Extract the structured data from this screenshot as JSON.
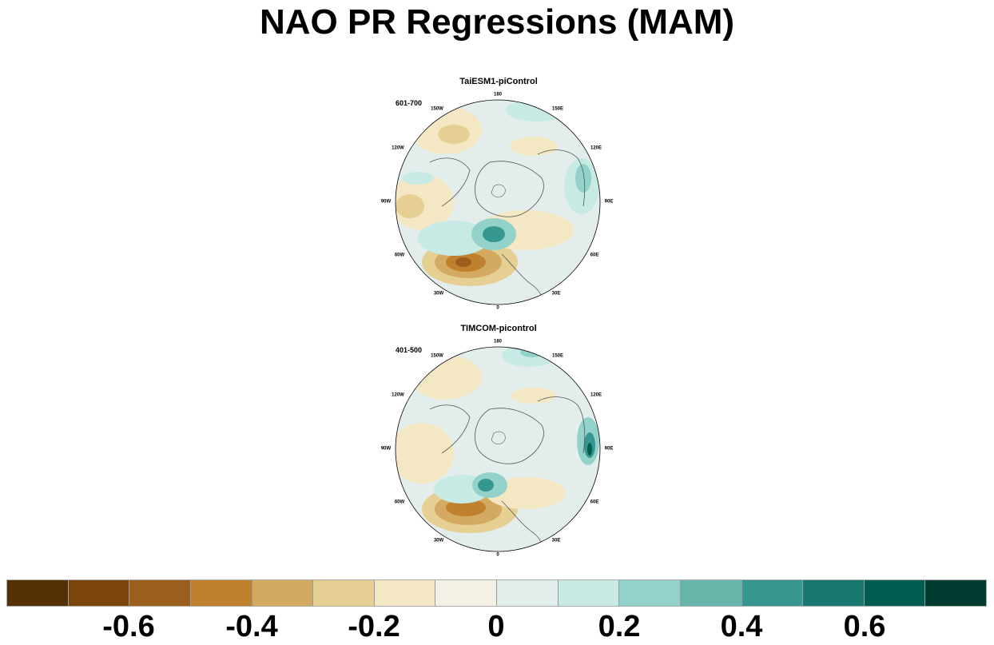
{
  "title": "NAO PR Regressions (MAM)",
  "panels": [
    {
      "title": "TaiESM1-piControl",
      "period": "601-700",
      "longitude_labels": {
        "l180": "180",
        "l150e": "150E",
        "l120e": "120E",
        "l90e": "90E",
        "l60e": "60E",
        "l30e": "30E",
        "l0": "0",
        "l30w": "30W",
        "l60w": "60W",
        "l90w": "90W",
        "l120w": "120W",
        "l150w": "150W"
      }
    },
    {
      "title": "TIMCOM-picontrol",
      "period": "401-500",
      "longitude_labels": {
        "l180": "180",
        "l150e": "150E",
        "l120e": "120E",
        "l90e": "90E",
        "l60e": "60E",
        "l30e": "30E",
        "l0": "0",
        "l30w": "30W",
        "l60w": "60W",
        "l90w": "90W",
        "l120w": "120W",
        "l150w": "150W"
      }
    }
  ],
  "colorbar": {
    "colors": [
      "#543005",
      "#7a440b",
      "#9c5e1d",
      "#bf812d",
      "#d4aa62",
      "#e5cf93",
      "#f4e8c4",
      "#f4f0e6",
      "#e3eeec",
      "#c7eae5",
      "#93d2ca",
      "#66b6ab",
      "#35978f",
      "#18776f",
      "#015c52",
      "#003c30"
    ],
    "labels": {
      "m06": "-0.6",
      "m04": "-0.4",
      "m02": "-0.2",
      "z0": "0",
      "p02": "0.2",
      "p04": "0.4",
      "p06": "0.6"
    }
  }
}
